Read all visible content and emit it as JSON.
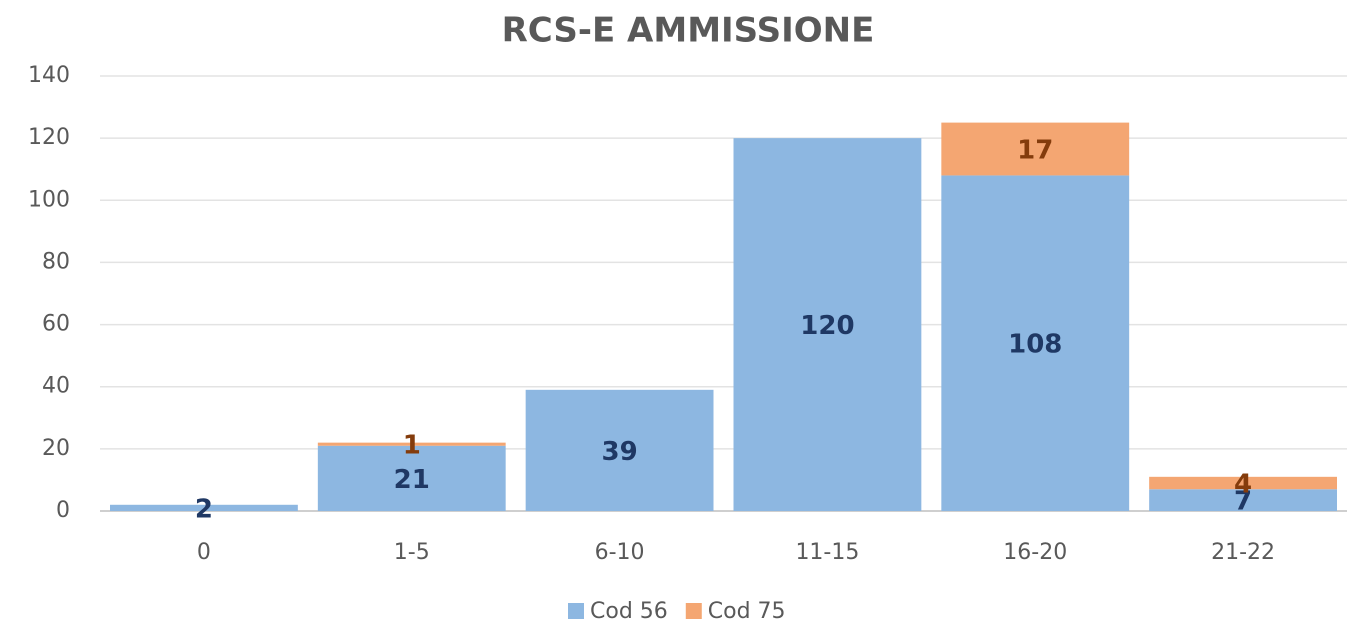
{
  "chart_data": {
    "type": "stacked-bar",
    "title": "RCS-E AMMISSIONE",
    "categories": [
      "0",
      "1-5",
      "6-10",
      "11-15",
      "16-20",
      "21-22"
    ],
    "series": [
      {
        "name": "Cod 56",
        "color": "#8db7e1",
        "label_color": "#1f3864",
        "values": [
          2,
          21,
          39,
          120,
          108,
          7
        ]
      },
      {
        "name": "Cod 75",
        "color": "#f4a672",
        "label_color": "#843c0c",
        "values": [
          null,
          1,
          null,
          null,
          17,
          4
        ]
      }
    ],
    "ylim": [
      0,
      140
    ],
    "yticks": [
      0,
      20,
      40,
      60,
      80,
      100,
      120,
      140
    ],
    "grid": true,
    "legend": "bottom"
  }
}
